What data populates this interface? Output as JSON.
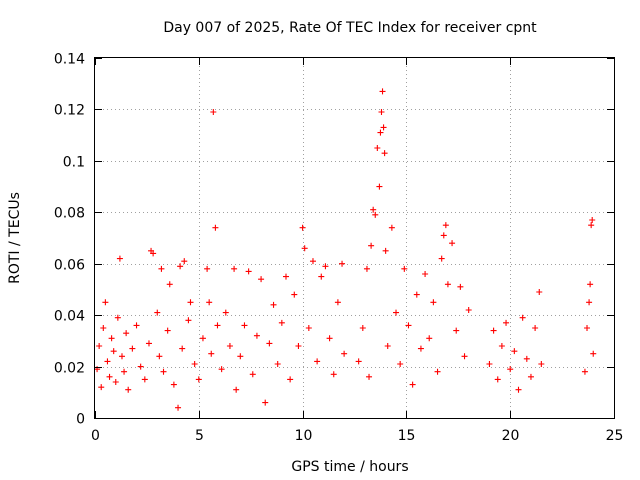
{
  "chart_data": {
    "type": "scatter",
    "title": "Day 007 of 2025, Rate Of TEC Index for receiver cpnt",
    "xlabel": "GPS time / hours",
    "ylabel": "ROTI / TECUs",
    "xlim": [
      0,
      25
    ],
    "ylim": [
      0,
      0.14
    ],
    "xticks": [
      0,
      5,
      10,
      15,
      20,
      25
    ],
    "xtick_labels": [
      "0",
      "5",
      "10",
      "15",
      "20",
      "25"
    ],
    "yticks": [
      0,
      0.02,
      0.04,
      0.06,
      0.08,
      0.1,
      0.12,
      0.14
    ],
    "ytick_labels": [
      "0",
      "0.02",
      "0.04",
      "0.06",
      "0.08",
      "0.1",
      "0.12",
      "0.14"
    ],
    "grid": true,
    "marker": "+",
    "color": "#ff0000",
    "series": [
      {
        "name": "ROTI",
        "data_gaps_hours": [
          [
            12.1,
            12.6
          ],
          [
            18.2,
            18.9
          ],
          [
            21.7,
            23.5
          ]
        ],
        "points": [
          [
            0.1,
            0.019
          ],
          [
            0.2,
            0.028
          ],
          [
            0.3,
            0.012
          ],
          [
            0.4,
            0.035
          ],
          [
            0.5,
            0.045
          ],
          [
            0.6,
            0.022
          ],
          [
            0.7,
            0.016
          ],
          [
            0.8,
            0.031
          ],
          [
            0.9,
            0.026
          ],
          [
            1.0,
            0.014
          ],
          [
            1.1,
            0.039
          ],
          [
            1.2,
            0.062
          ],
          [
            1.3,
            0.024
          ],
          [
            1.4,
            0.018
          ],
          [
            1.5,
            0.033
          ],
          [
            1.6,
            0.011
          ],
          [
            1.8,
            0.027
          ],
          [
            2.0,
            0.036
          ],
          [
            2.2,
            0.02
          ],
          [
            2.4,
            0.015
          ],
          [
            2.6,
            0.029
          ],
          [
            2.7,
            0.065
          ],
          [
            2.8,
            0.064
          ],
          [
            3.0,
            0.041
          ],
          [
            3.1,
            0.024
          ],
          [
            3.2,
            0.058
          ],
          [
            3.3,
            0.018
          ],
          [
            3.5,
            0.034
          ],
          [
            3.6,
            0.052
          ],
          [
            3.8,
            0.013
          ],
          [
            4.0,
            0.004
          ],
          [
            4.1,
            0.059
          ],
          [
            4.2,
            0.027
          ],
          [
            4.3,
            0.061
          ],
          [
            4.5,
            0.038
          ],
          [
            4.6,
            0.045
          ],
          [
            4.8,
            0.021
          ],
          [
            5.0,
            0.015
          ],
          [
            5.2,
            0.031
          ],
          [
            5.4,
            0.058
          ],
          [
            5.5,
            0.045
          ],
          [
            5.6,
            0.025
          ],
          [
            5.7,
            0.119
          ],
          [
            5.8,
            0.074
          ],
          [
            5.9,
            0.036
          ],
          [
            6.1,
            0.019
          ],
          [
            6.3,
            0.041
          ],
          [
            6.5,
            0.028
          ],
          [
            6.7,
            0.058
          ],
          [
            6.8,
            0.011
          ],
          [
            7.0,
            0.024
          ],
          [
            7.2,
            0.036
          ],
          [
            7.4,
            0.057
          ],
          [
            7.6,
            0.017
          ],
          [
            7.8,
            0.032
          ],
          [
            8.0,
            0.054
          ],
          [
            8.2,
            0.006
          ],
          [
            8.4,
            0.029
          ],
          [
            8.6,
            0.044
          ],
          [
            8.8,
            0.021
          ],
          [
            9.0,
            0.037
          ],
          [
            9.2,
            0.055
          ],
          [
            9.4,
            0.015
          ],
          [
            9.6,
            0.048
          ],
          [
            9.8,
            0.028
          ],
          [
            10.0,
            0.074
          ],
          [
            10.1,
            0.066
          ],
          [
            10.3,
            0.035
          ],
          [
            10.5,
            0.061
          ],
          [
            10.7,
            0.022
          ],
          [
            10.9,
            0.055
          ],
          [
            11.1,
            0.059
          ],
          [
            11.3,
            0.031
          ],
          [
            11.5,
            0.017
          ],
          [
            11.7,
            0.045
          ],
          [
            11.9,
            0.06
          ],
          [
            12.0,
            0.025
          ],
          [
            12.7,
            0.022
          ],
          [
            12.9,
            0.035
          ],
          [
            13.1,
            0.058
          ],
          [
            13.2,
            0.016
          ],
          [
            13.3,
            0.067
          ],
          [
            13.4,
            0.081
          ],
          [
            13.5,
            0.079
          ],
          [
            13.6,
            0.105
          ],
          [
            13.7,
            0.09
          ],
          [
            13.75,
            0.111
          ],
          [
            13.8,
            0.119
          ],
          [
            13.85,
            0.127
          ],
          [
            13.9,
            0.113
          ],
          [
            13.95,
            0.103
          ],
          [
            14.0,
            0.065
          ],
          [
            14.1,
            0.028
          ],
          [
            14.3,
            0.074
          ],
          [
            14.5,
            0.041
          ],
          [
            14.7,
            0.021
          ],
          [
            14.9,
            0.058
          ],
          [
            15.1,
            0.036
          ],
          [
            15.3,
            0.013
          ],
          [
            15.5,
            0.048
          ],
          [
            15.7,
            0.027
          ],
          [
            15.9,
            0.056
          ],
          [
            16.1,
            0.031
          ],
          [
            16.3,
            0.045
          ],
          [
            16.5,
            0.018
          ],
          [
            16.7,
            0.062
          ],
          [
            16.8,
            0.071
          ],
          [
            16.9,
            0.075
          ],
          [
            17.0,
            0.052
          ],
          [
            17.2,
            0.068
          ],
          [
            17.4,
            0.034
          ],
          [
            17.6,
            0.051
          ],
          [
            17.8,
            0.024
          ],
          [
            18.0,
            0.042
          ],
          [
            19.0,
            0.021
          ],
          [
            19.2,
            0.034
          ],
          [
            19.4,
            0.015
          ],
          [
            19.6,
            0.028
          ],
          [
            19.8,
            0.037
          ],
          [
            20.0,
            0.019
          ],
          [
            20.2,
            0.026
          ],
          [
            20.4,
            0.011
          ],
          [
            20.6,
            0.039
          ],
          [
            20.8,
            0.023
          ],
          [
            21.0,
            0.016
          ],
          [
            21.2,
            0.035
          ],
          [
            21.4,
            0.049
          ],
          [
            21.5,
            0.021
          ],
          [
            23.6,
            0.018
          ],
          [
            23.7,
            0.035
          ],
          [
            23.8,
            0.045
          ],
          [
            23.85,
            0.052
          ],
          [
            23.9,
            0.075
          ],
          [
            23.95,
            0.077
          ],
          [
            24.0,
            0.025
          ]
        ]
      }
    ]
  }
}
